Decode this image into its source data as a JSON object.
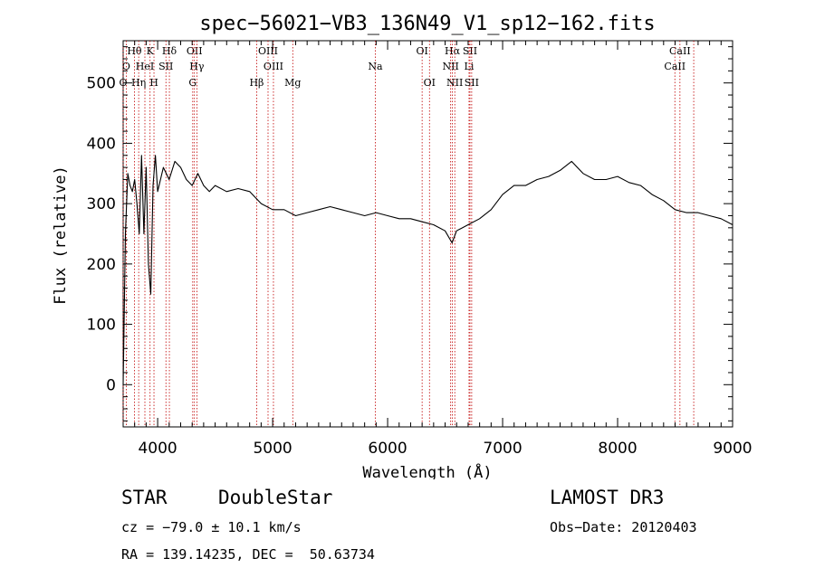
{
  "chart_data": {
    "type": "line",
    "title": "spec−56021−VB3_136N49_V1_sp12−162.fits",
    "xlabel": "Wavelength (Å)",
    "ylabel": "Flux (relative)",
    "xlim": [
      3700,
      9000
    ],
    "ylim": [
      -70,
      570
    ],
    "x_ticks": [
      4000,
      5000,
      6000,
      7000,
      8000,
      9000
    ],
    "x_tick_labels": [
      "4000",
      "5000",
      "6000",
      "7000",
      "8000",
      "9000"
    ],
    "y_ticks": [
      0,
      100,
      200,
      300,
      400,
      500
    ],
    "y_tick_labels": [
      "0",
      "100",
      "200",
      "300",
      "400",
      "500"
    ],
    "series": [
      {
        "name": "spectrum",
        "x": [
          3700,
          3720,
          3740,
          3760,
          3780,
          3800,
          3820,
          3840,
          3860,
          3880,
          3900,
          3920,
          3940,
          3960,
          3980,
          4000,
          4050,
          4100,
          4150,
          4200,
          4250,
          4300,
          4350,
          4400,
          4450,
          4500,
          4600,
          4700,
          4800,
          4900,
          5000,
          5100,
          5200,
          5300,
          5400,
          5500,
          5600,
          5700,
          5800,
          5900,
          6000,
          6100,
          6200,
          6300,
          6400,
          6500,
          6560,
          6600,
          6700,
          6800,
          6900,
          7000,
          7100,
          7200,
          7300,
          7400,
          7500,
          7600,
          7700,
          7800,
          7900,
          8000,
          8100,
          8200,
          8300,
          8400,
          8500,
          8600,
          8700,
          8800,
          8900,
          9000
        ],
        "y": [
          0,
          250,
          350,
          330,
          320,
          340,
          300,
          250,
          380,
          250,
          360,
          200,
          150,
          330,
          380,
          320,
          360,
          340,
          370,
          360,
          340,
          330,
          350,
          330,
          320,
          330,
          320,
          325,
          320,
          300,
          290,
          290,
          280,
          285,
          290,
          295,
          290,
          285,
          280,
          285,
          280,
          275,
          275,
          270,
          265,
          255,
          235,
          255,
          265,
          275,
          290,
          315,
          330,
          330,
          340,
          345,
          355,
          370,
          350,
          340,
          340,
          345,
          335,
          330,
          315,
          305,
          290,
          285,
          285,
          280,
          275,
          265
        ]
      }
    ],
    "line_markers": [
      {
        "label": "Hθ",
        "x": 3798
      },
      {
        "label": "K",
        "x": 3934
      },
      {
        "label": "Hδ",
        "x": 4102
      },
      {
        "label": "OII",
        "x": 4320
      },
      {
        "label": "OIII",
        "x": 4960
      },
      {
        "label": "OI",
        "x": 6300
      },
      {
        "label": "Hα",
        "x": 6563
      },
      {
        "label": "SII",
        "x": 6716
      },
      {
        "label": "CaII",
        "x": 8542
      },
      {
        "label": "O",
        "x": 3727
      },
      {
        "label": "HeI",
        "x": 3889
      },
      {
        "label": "SII",
        "x": 4072
      },
      {
        "label": "Hγ",
        "x": 4341
      },
      {
        "label": "OIII",
        "x": 5007
      },
      {
        "label": "Na",
        "x": 5893
      },
      {
        "label": "NII",
        "x": 6548
      },
      {
        "label": "Li",
        "x": 6708
      },
      {
        "label": "CaII",
        "x": 8498
      },
      {
        "label": "O",
        "x": 3700
      },
      {
        "label": "Hη",
        "x": 3835
      },
      {
        "label": "H",
        "x": 3968
      },
      {
        "label": "G",
        "x": 4305
      },
      {
        "label": "Hβ",
        "x": 4861
      },
      {
        "label": "Mg",
        "x": 5175
      },
      {
        "label": "OI",
        "x": 6364
      },
      {
        "label": "NII",
        "x": 6584
      },
      {
        "label": "SII",
        "x": 6731
      },
      {
        "label": "CaII",
        "x": 8662
      }
    ]
  },
  "info": {
    "class": "STAR",
    "subclass": "DoubleStar",
    "survey": "LAMOST DR3",
    "cz": "cz = −79.0 ± 10.1 km/s",
    "obs_date": "Obs−Date: 20120403",
    "coords": "RA = 139.14235, DEC =  50.63734"
  },
  "colors": {
    "marker": "#c00000",
    "line": "#000000"
  }
}
